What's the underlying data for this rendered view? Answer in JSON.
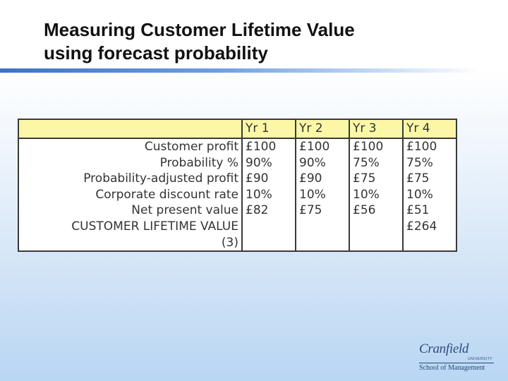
{
  "slide": {
    "title_line1": "Measuring Customer Lifetime Value",
    "title_line2": "using forecast probability"
  },
  "table": {
    "headers": [
      "",
      "Yr 1",
      "Yr 2",
      "Yr 3",
      "Yr 4"
    ],
    "rows": [
      {
        "label": "Customer profit",
        "values": [
          "£100",
          "£100",
          "£100",
          "£100"
        ]
      },
      {
        "label": "Probability %",
        "values": [
          "90%",
          "90%",
          "75%",
          "75%"
        ]
      },
      {
        "label": "Probability-adjusted profit",
        "values": [
          "£90",
          "£90",
          "£75",
          "£75"
        ]
      },
      {
        "label": "Corporate discount rate",
        "values": [
          "10%",
          "10%",
          "10%",
          "10%"
        ]
      },
      {
        "label": "Net present value",
        "values": [
          "£82",
          "£75",
          "£56",
          "£51"
        ]
      }
    ],
    "total": {
      "label_line1": "CUSTOMER LIFETIME VALUE",
      "label_line2": "(3)",
      "value": "£264"
    }
  },
  "logo": {
    "name": "Cranfield",
    "university": "UNIVERSITY",
    "school": "School of Management"
  },
  "colors": {
    "header_fill": "#fbf7a6",
    "title_rule": "#3b74c4",
    "logo": "#2a4a7c"
  }
}
